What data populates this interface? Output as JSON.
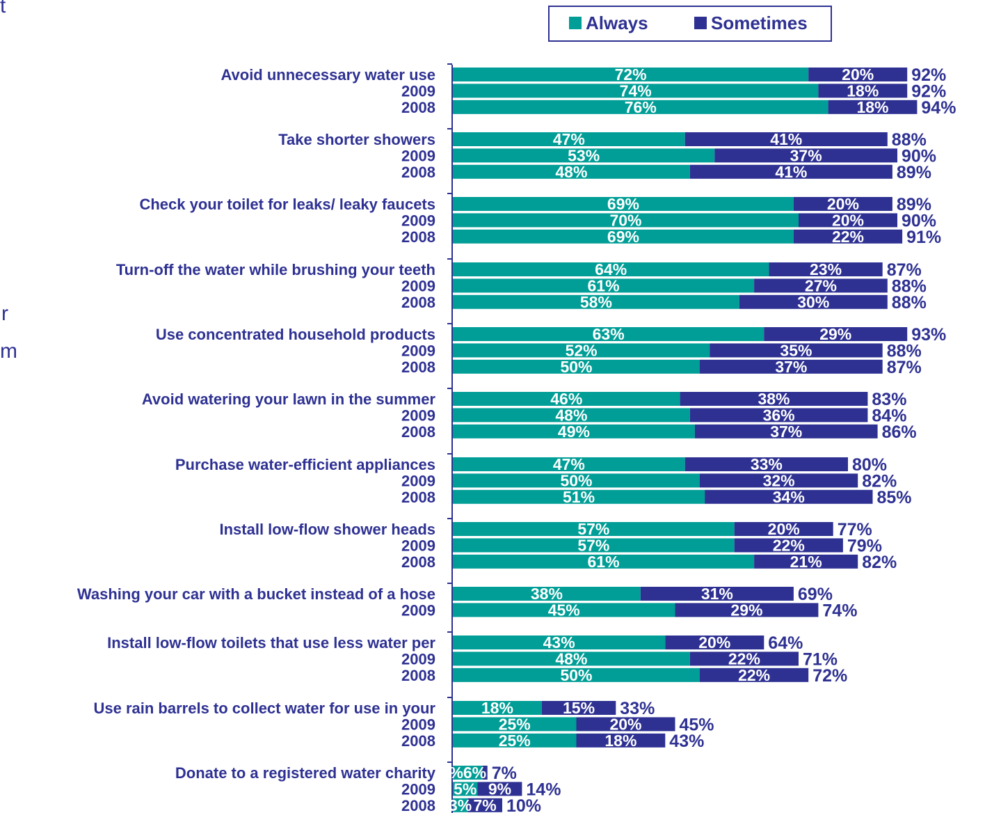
{
  "colors": {
    "always": "#009e96",
    "sometimes": "#2e3192",
    "label": "#2e3192",
    "inside_label": "#ffffff",
    "axis": "#2e3192"
  },
  "clipped_text": {
    "top": "t",
    "middle_1": "r",
    "middle_2": "m"
  },
  "chart_data": {
    "type": "bar",
    "orientation": "horizontal",
    "stacked": true,
    "legend": {
      "position": "top-right",
      "entries": [
        "Always",
        "Sometimes"
      ]
    },
    "series_names": [
      "Always",
      "Sometimes"
    ],
    "groups": [
      {
        "label": "Avoid unnecessary water use",
        "rows": [
          {
            "label": "",
            "always": 72,
            "sometimes": 20,
            "total": 92
          },
          {
            "label": "2009",
            "always": 74,
            "sometimes": 18,
            "total": 92
          },
          {
            "label": "2008",
            "always": 76,
            "sometimes": 18,
            "total": 94
          }
        ]
      },
      {
        "label": "Take shorter showers",
        "rows": [
          {
            "label": "",
            "always": 47,
            "sometimes": 41,
            "total": 88
          },
          {
            "label": "2009",
            "always": 53,
            "sometimes": 37,
            "total": 90
          },
          {
            "label": "2008",
            "always": 48,
            "sometimes": 41,
            "total": 89
          }
        ]
      },
      {
        "label": "Check your toilet for leaks/ leaky faucets",
        "rows": [
          {
            "label": "",
            "always": 69,
            "sometimes": 20,
            "total": 89
          },
          {
            "label": "2009",
            "always": 70,
            "sometimes": 20,
            "total": 90
          },
          {
            "label": "2008",
            "always": 69,
            "sometimes": 22,
            "total": 91
          }
        ]
      },
      {
        "label": "Turn-off the water while brushing your teeth",
        "rows": [
          {
            "label": "",
            "always": 64,
            "sometimes": 23,
            "total": 87
          },
          {
            "label": "2009",
            "always": 61,
            "sometimes": 27,
            "total": 88
          },
          {
            "label": "2008",
            "always": 58,
            "sometimes": 30,
            "total": 88
          }
        ]
      },
      {
        "label": "Use concentrated household products",
        "rows": [
          {
            "label": "",
            "always": 63,
            "sometimes": 29,
            "total": 93
          },
          {
            "label": "2009",
            "always": 52,
            "sometimes": 35,
            "total": 88
          },
          {
            "label": "2008",
            "always": 50,
            "sometimes": 37,
            "total": 87
          }
        ]
      },
      {
        "label": "Avoid watering your lawn in the summer",
        "rows": [
          {
            "label": "",
            "always": 46,
            "sometimes": 38,
            "total": 83
          },
          {
            "label": "2009",
            "always": 48,
            "sometimes": 36,
            "total": 84
          },
          {
            "label": "2008",
            "always": 49,
            "sometimes": 37,
            "total": 86
          }
        ]
      },
      {
        "label": "Purchase water-efficient appliances",
        "rows": [
          {
            "label": "",
            "always": 47,
            "sometimes": 33,
            "total": 80
          },
          {
            "label": "2009",
            "always": 50,
            "sometimes": 32,
            "total": 82
          },
          {
            "label": "2008",
            "always": 51,
            "sometimes": 34,
            "total": 85
          }
        ]
      },
      {
        "label": "Install low-flow shower heads",
        "rows": [
          {
            "label": "",
            "always": 57,
            "sometimes": 20,
            "total": 77
          },
          {
            "label": "2009",
            "always": 57,
            "sometimes": 22,
            "total": 79
          },
          {
            "label": "2008",
            "always": 61,
            "sometimes": 21,
            "total": 82
          }
        ]
      },
      {
        "label": "Washing your car with a bucket instead of a hose",
        "rows": [
          {
            "label": "",
            "always": 38,
            "sometimes": 31,
            "total": 69
          },
          {
            "label": "2009",
            "always": 45,
            "sometimes": 29,
            "total": 74
          }
        ]
      },
      {
        "label": "Install low-flow toilets that use less water per",
        "rows": [
          {
            "label": "",
            "always": 43,
            "sometimes": 20,
            "total": 64
          },
          {
            "label": "2009",
            "always": 48,
            "sometimes": 22,
            "total": 71
          },
          {
            "label": "2008",
            "always": 50,
            "sometimes": 22,
            "total": 72
          }
        ]
      },
      {
        "label": "Use rain barrels to collect water for use in your",
        "rows": [
          {
            "label": "",
            "always": 18,
            "sometimes": 15,
            "total": 33
          },
          {
            "label": "2009",
            "always": 25,
            "sometimes": 20,
            "total": 45
          },
          {
            "label": "2008",
            "always": 25,
            "sometimes": 18,
            "total": 43
          }
        ]
      },
      {
        "label": "Donate to a registered water charity",
        "rows": [
          {
            "label": "",
            "always": 6,
            "sometimes": null,
            "total": 7,
            "always_text": "%6%"
          },
          {
            "label": "2009",
            "always": 5,
            "sometimes": 9,
            "total": 14
          },
          {
            "label": "2008",
            "always": 3,
            "sometimes": 7,
            "total": 10,
            "always_text": "3%",
            "sometimes_text": "7%"
          }
        ]
      }
    ]
  }
}
